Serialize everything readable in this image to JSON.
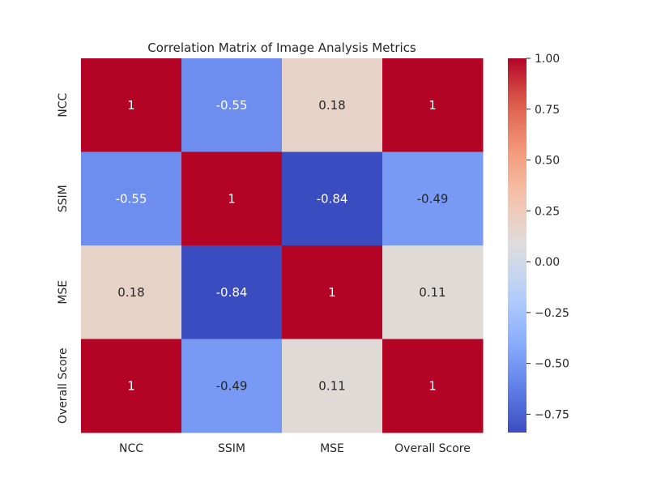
{
  "chart_data": {
    "type": "heatmap",
    "title": "Correlation Matrix of Image Analysis Metrics",
    "xlabel": "",
    "ylabel": "",
    "x_labels": [
      "NCC",
      "SSIM",
      "MSE",
      "Overall Score"
    ],
    "y_labels": [
      "NCC",
      "SSIM",
      "MSE",
      "Overall Score"
    ],
    "values": [
      [
        1,
        -0.55,
        0.18,
        1
      ],
      [
        -0.55,
        1,
        -0.84,
        -0.49
      ],
      [
        0.18,
        -0.84,
        1,
        0.11
      ],
      [
        1,
        -0.49,
        0.11,
        1
      ]
    ],
    "annotations": [
      [
        "1",
        "-0.55",
        "0.18",
        "1"
      ],
      [
        "-0.55",
        "1",
        "-0.84",
        "-0.49"
      ],
      [
        "0.18",
        "-0.84",
        "1",
        "0.11"
      ],
      [
        "1",
        "-0.49",
        "0.11",
        "1"
      ]
    ],
    "colormap": "coolwarm",
    "colorbar": {
      "range": [
        -0.84,
        1
      ],
      "ticks": [
        1.0,
        0.75,
        0.5,
        0.25,
        0.0,
        -0.25,
        -0.5,
        -0.75
      ],
      "tick_labels": [
        "1.00",
        "0.75",
        "0.50",
        "0.25",
        "0.00",
        "−0.25",
        "−0.50",
        "−0.75"
      ],
      "placement": "right"
    },
    "grid": false
  }
}
